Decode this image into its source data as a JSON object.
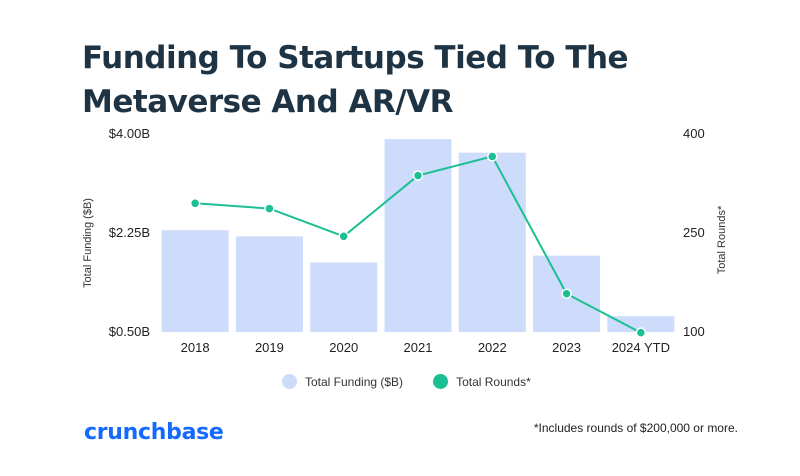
{
  "title_line1": "Funding To Startups Tied To The",
  "title_line2": "Metaverse And AR/VR",
  "brand": "crunchbase",
  "footnote": "*Includes rounds of $200,000 or more.",
  "colors": {
    "bar": "#cddcfb",
    "line": "#1cbf94",
    "title": "#1e3444",
    "brand": "#146aff"
  },
  "chart_data": {
    "type": "bar",
    "categories": [
      "2018",
      "2019",
      "2020",
      "2021",
      "2022",
      "2023",
      "2024 YTD"
    ],
    "series": [
      {
        "name": "Total Funding ($B)",
        "type": "bar",
        "axis": "left",
        "values": [
          2.3,
          2.19,
          1.73,
          3.91,
          3.67,
          1.85,
          0.78
        ]
      },
      {
        "name": "Total Rounds*",
        "type": "line",
        "axis": "right",
        "values": [
          295,
          287,
          245,
          337,
          366,
          158,
          99
        ]
      }
    ],
    "ylabel": "Total Funding ($B)",
    "y2label": "Total Rounds*",
    "ylim": [
      0.5,
      4.0
    ],
    "y2lim": [
      100,
      400
    ],
    "yticks": [
      "$0.50B",
      "$2.25B",
      "$4.00B"
    ],
    "ytick_values": [
      0.5,
      2.25,
      4.0
    ],
    "y2ticks": [
      "100",
      "250",
      "400"
    ],
    "y2tick_values": [
      100,
      250,
      400
    ],
    "legend_position": "bottom-center",
    "grid": false
  }
}
